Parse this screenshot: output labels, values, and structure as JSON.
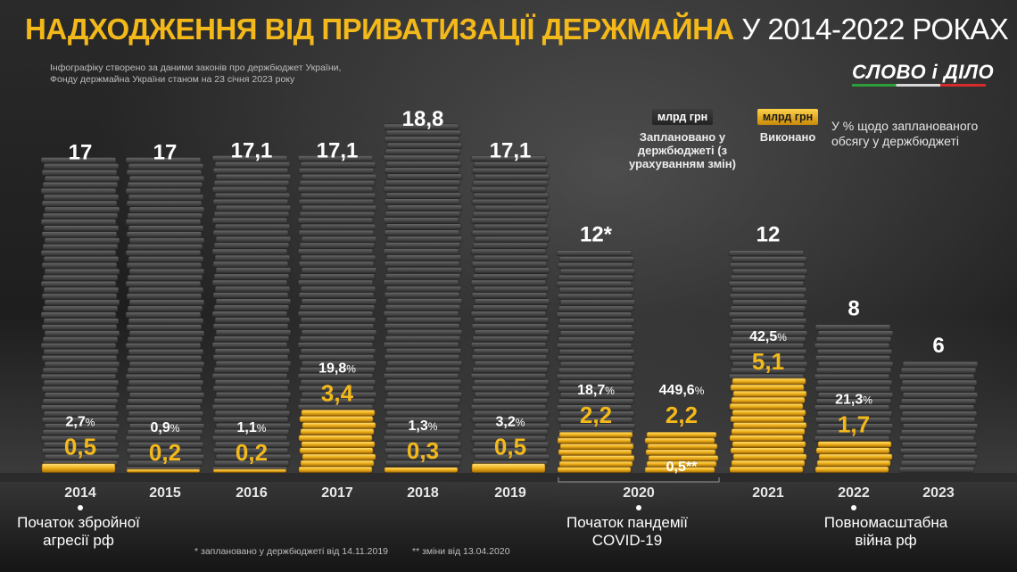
{
  "title": {
    "highlight": "НАДХОДЖЕННЯ ВІД ПРИВАТИЗАЦІЇ ДЕРЖМАЙНА",
    "rest": " У 2014-2022 РОКАХ"
  },
  "source": "Інфографіку створено за даними законів про держбюджет України, Фонду держмайна України станом на 23 січня 2023 року",
  "logo": "СЛОВО і ДІЛО",
  "legend": {
    "planned_unit": "млрд грн",
    "planned_label": "Заплановано у держбюджеті (з урахуванням змін)",
    "actual_unit": "млрд грн",
    "actual_label": "Виконано",
    "percent_label": "У % щодо запланованого обсягу у держбюджеті"
  },
  "colors": {
    "gold": "#f3b81a",
    "coin_grey": "#5a5a5a",
    "white": "#ffffff"
  },
  "chart_data": {
    "type": "bar",
    "unit": "млрд грн",
    "categories": [
      "2014",
      "2015",
      "2016",
      "2017",
      "2018",
      "2019",
      "2020",
      "2020",
      "2021",
      "2022",
      "2023"
    ],
    "year_labels": [
      "2014",
      "2015",
      "2016",
      "2017",
      "2018",
      "2019",
      "2020",
      "2021",
      "2022",
      "2023"
    ],
    "series": [
      {
        "name": "Заплановано",
        "values": [
          17,
          17,
          17.1,
          17.1,
          18.8,
          17.1,
          12,
          0.5,
          12,
          8,
          6
        ],
        "labels": [
          "17",
          "17",
          "17,1",
          "17,1",
          "18,8",
          "17,1",
          "12*",
          "0,5**",
          "12",
          "8",
          "6"
        ]
      },
      {
        "name": "Виконано",
        "values": [
          0.5,
          0.2,
          0.2,
          3.4,
          0.3,
          0.5,
          2.2,
          2.2,
          5.1,
          1.7,
          null
        ],
        "labels": [
          "0,5",
          "0,2",
          "0,2",
          "3,4",
          "0,3",
          "0,5",
          "2,2",
          "2,2",
          "5,1",
          "1,7",
          ""
        ]
      }
    ],
    "percent_labels": [
      "2,7",
      "0,9",
      "1,1",
      "19,8",
      "1,3",
      "3,2",
      "18,7",
      "449,6",
      "42,5",
      "21,3",
      ""
    ],
    "percent_sign": "%"
  },
  "events": [
    {
      "text": "Початок збройної агресії рф"
    },
    {
      "text": "Початок пандемії COVID-19"
    },
    {
      "text": "Повномасштабна війна рф"
    }
  ],
  "footnotes": {
    "planned": "* заплановано у держбюджеті від 14.11.2019",
    "changes": "** зміни від 13.04.2020"
  }
}
